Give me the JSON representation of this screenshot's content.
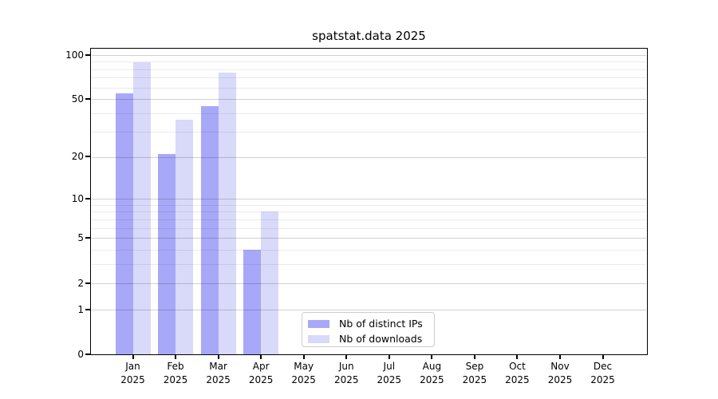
{
  "title": "spatstat.data 2025",
  "chart_data": {
    "type": "bar",
    "title": "spatstat.data 2025",
    "categories": [
      "Jan",
      "Feb",
      "Mar",
      "Apr",
      "May",
      "Jun",
      "Jul",
      "Aug",
      "Sep",
      "Oct",
      "Nov",
      "Dec"
    ],
    "year_label": "2025",
    "series": [
      {
        "name": "Nb of distinct IPs",
        "color": "#a8a8f8",
        "values": [
          55,
          21,
          45,
          4,
          0,
          0,
          0,
          0,
          0,
          0,
          0,
          0
        ]
      },
      {
        "name": "Nb of downloads",
        "color": "#d9d9fa",
        "values": [
          89,
          36,
          76,
          8,
          0,
          0,
          0,
          0,
          0,
          0,
          0,
          0
        ]
      }
    ],
    "yscale": "log1p",
    "ylim": [
      0,
      110
    ],
    "yticks": [
      100,
      50,
      20,
      10,
      5,
      2,
      1,
      0
    ],
    "minor_gridlines": [
      3,
      4,
      6,
      7,
      8,
      9,
      30,
      40,
      60,
      70,
      80,
      90
    ],
    "grid": true,
    "legend_position": "lower-center"
  }
}
